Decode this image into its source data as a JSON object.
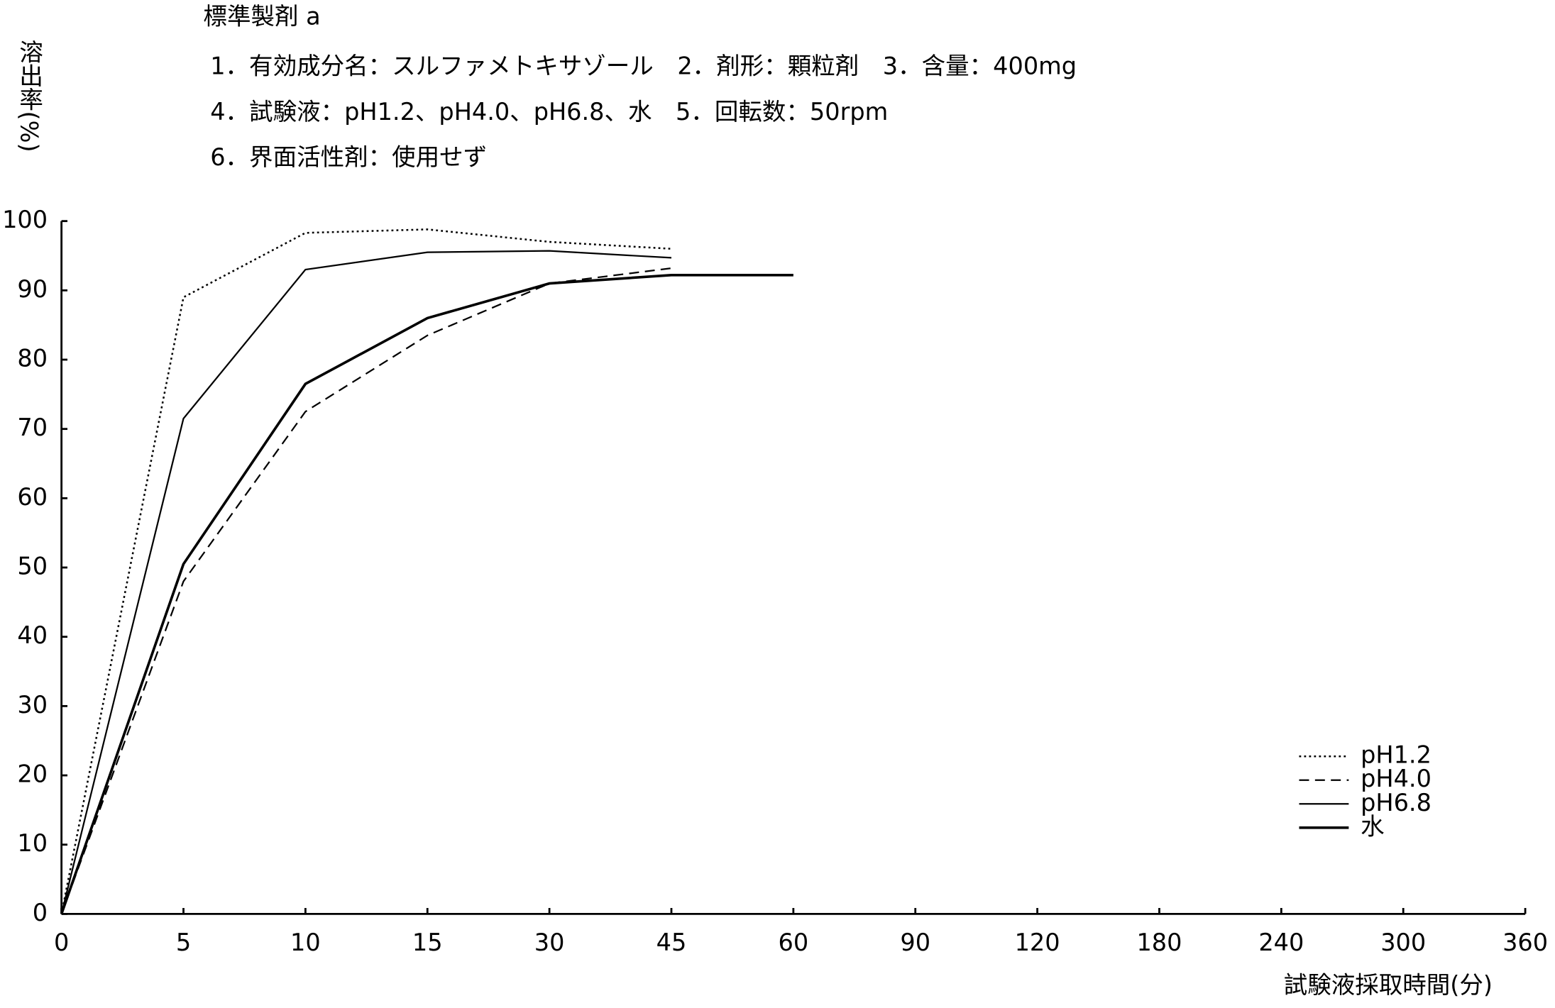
{
  "chart_data": {
    "type": "line",
    "title": "標準製剤 a",
    "subtitle": [
      "1．有効成分名：スルファメトキサゾール　2．剤形：顆粒剤　3．含量：400mg",
      "4．試験液：pH1.2、pH4.0、pH6.8、水　5．回転数：50rpm",
      "6．界面活性剤：使用せず"
    ],
    "y_label": "溶出率(%)",
    "x_label": "試験液採取時間(分)",
    "categories": [
      "0",
      "5",
      "10",
      "15",
      "30",
      "45",
      "60",
      "90",
      "120",
      "180",
      "240",
      "300",
      "360"
    ],
    "series": [
      {
        "name": "pH1.2",
        "color": "#000000",
        "style": "dotted",
        "values": [
          0,
          89,
          98.3,
          98.8,
          97,
          96,
          null,
          null,
          null,
          null,
          null,
          null,
          null
        ]
      },
      {
        "name": "pH4.0",
        "color": "#000000",
        "style": "dashed",
        "values": [
          0,
          48,
          72.5,
          83.5,
          91,
          93.2,
          null,
          null,
          null,
          null,
          null,
          null,
          null
        ]
      },
      {
        "name": "pH6.8",
        "color": "#000000",
        "style": "solid",
        "values": [
          0,
          71.5,
          93,
          95.5,
          95.7,
          94.7,
          null,
          null,
          null,
          null,
          null,
          null,
          null
        ]
      },
      {
        "name": "水",
        "color": "#000000",
        "style": "bold",
        "values": [
          0,
          50.5,
          76.5,
          86,
          91,
          92.2,
          92.2,
          null,
          null,
          null,
          null,
          null,
          null
        ]
      }
    ],
    "ylim": [
      0,
      100
    ],
    "yticks": [
      0,
      10,
      20,
      30,
      40,
      50,
      60,
      70,
      80,
      90,
      100
    ],
    "grid": false,
    "legend": "lower right"
  }
}
